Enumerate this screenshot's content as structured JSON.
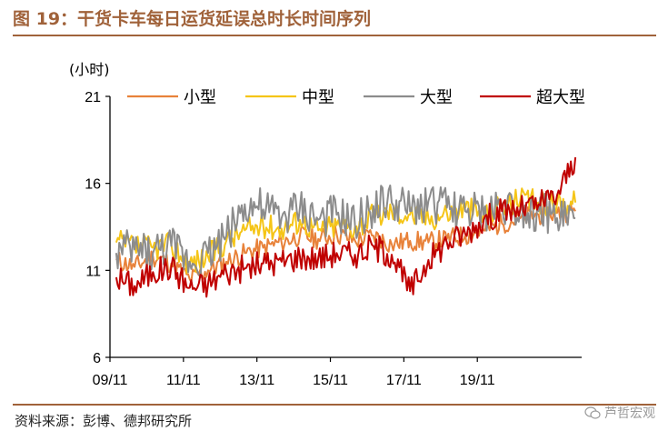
{
  "figure": {
    "title": "图 19：干货卡车每日运货延误总时长时间序列",
    "source": "资料来源：彭博、德邦研究所",
    "watermark": "芦哲宏观"
  },
  "chart_data": {
    "type": "line",
    "title": "干货卡车每日运货延误总时长时间序列",
    "ylabel": "(小时)",
    "xlabel": "",
    "ylim": [
      6,
      21
    ],
    "yticks": [
      6,
      11,
      16,
      21
    ],
    "xlim": [
      2009.83,
      2022.67
    ],
    "xticks": [
      {
        "label": "09/11",
        "x": 2009.83
      },
      {
        "label": "11/11",
        "x": 2011.83
      },
      {
        "label": "13/11",
        "x": 2013.83
      },
      {
        "label": "15/11",
        "x": 2015.83
      },
      {
        "label": "17/11",
        "x": 2017.83
      },
      {
        "label": "19/11",
        "x": 2019.83
      }
    ],
    "legend_position": "top",
    "x": [
      2010.0,
      2010.5,
      2011.0,
      2011.5,
      2012.0,
      2012.5,
      2013.0,
      2013.5,
      2014.0,
      2014.5,
      2015.0,
      2015.5,
      2016.0,
      2016.5,
      2017.0,
      2017.5,
      2018.0,
      2018.5,
      2019.0,
      2019.5,
      2020.0,
      2020.5,
      2021.0,
      2021.5,
      2022.0,
      2022.5
    ],
    "series": [
      {
        "name": "小型",
        "color": "#e8823a",
        "values": [
          11.6,
          11.2,
          11.8,
          11.4,
          10.5,
          11.0,
          11.5,
          12.0,
          12.3,
          12.6,
          13.0,
          12.8,
          13.1,
          12.7,
          13.0,
          12.5,
          12.7,
          12.6,
          12.8,
          13.0,
          13.3,
          13.7,
          14.0,
          14.2,
          14.3,
          14.4
        ]
      },
      {
        "name": "中型",
        "color": "#f5c518",
        "values": [
          12.6,
          12.4,
          12.3,
          12.5,
          11.4,
          11.8,
          12.7,
          13.3,
          13.6,
          13.4,
          13.9,
          13.3,
          13.6,
          13.5,
          14.1,
          14.4,
          14.2,
          14.0,
          14.3,
          14.6,
          14.2,
          14.8,
          15.0,
          14.9,
          14.8,
          14.9
        ]
      },
      {
        "name": "大型",
        "color": "#8c8c8c",
        "values": [
          12.0,
          12.2,
          12.0,
          12.4,
          11.5,
          12.0,
          13.0,
          14.8,
          14.5,
          14.0,
          14.6,
          13.9,
          14.2,
          13.6,
          14.7,
          14.9,
          14.4,
          15.0,
          14.6,
          14.4,
          14.2,
          14.8,
          14.6,
          14.4,
          14.0,
          14.0
        ]
      },
      {
        "name": "超大型",
        "color": "#c00000",
        "values": [
          10.6,
          10.1,
          10.9,
          11.2,
          10.0,
          10.2,
          10.9,
          11.1,
          11.4,
          11.5,
          11.8,
          11.7,
          12.0,
          11.9,
          12.4,
          11.9,
          9.8,
          11.6,
          12.6,
          13.1,
          13.9,
          14.4,
          14.5,
          14.8,
          15.3,
          17.5
        ]
      }
    ]
  }
}
